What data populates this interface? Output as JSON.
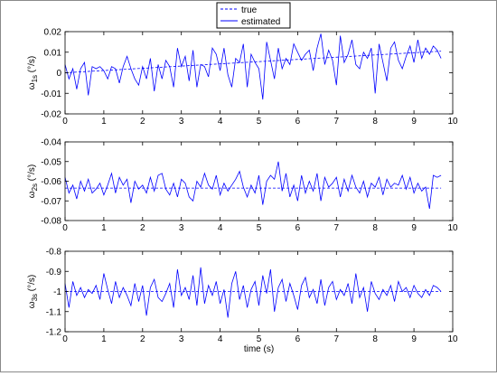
{
  "legend": {
    "entries": [
      {
        "label": "true",
        "style": "dashed",
        "color": "#0000ff"
      },
      {
        "label": "estimated",
        "style": "solid",
        "color": "#0000ff"
      }
    ]
  },
  "chart_data": [
    {
      "type": "line",
      "ylabel_main": "ω",
      "ylabel_sub": "1s",
      "ylabel_unit": " (°/s)",
      "xlabel": "",
      "xlim": [
        0,
        10
      ],
      "ylim": [
        -0.02,
        0.02
      ],
      "xticks": [
        0,
        1,
        2,
        3,
        4,
        5,
        6,
        7,
        8,
        9,
        10
      ],
      "yticks": [
        -0.02,
        -0.01,
        0,
        0.01,
        0.02
      ],
      "ytick_labels": [
        "-0.02",
        "-0.01",
        "0",
        "0.01",
        "0.02"
      ],
      "series": [
        {
          "name": "true",
          "style": "dashed",
          "color": "#0000ff",
          "x": [
            0,
            9.7
          ],
          "y": [
            0.0,
            0.0105
          ]
        },
        {
          "name": "estimated",
          "style": "solid",
          "color": "#0000ff",
          "x": [
            0,
            0.1,
            0.2,
            0.3,
            0.4,
            0.5,
            0.6,
            0.7,
            0.8,
            0.9,
            1,
            1.1,
            1.2,
            1.3,
            1.4,
            1.5,
            1.6,
            1.7,
            1.8,
            1.9,
            2,
            2.1,
            2.2,
            2.3,
            2.4,
            2.5,
            2.6,
            2.7,
            2.8,
            2.9,
            3,
            3.1,
            3.2,
            3.3,
            3.4,
            3.5,
            3.6,
            3.7,
            3.8,
            3.9,
            4,
            4.1,
            4.2,
            4.3,
            4.4,
            4.5,
            4.6,
            4.7,
            4.8,
            4.9,
            5,
            5.1,
            5.2,
            5.3,
            5.4,
            5.5,
            5.6,
            5.7,
            5.8,
            5.9,
            6,
            6.1,
            6.2,
            6.3,
            6.4,
            6.5,
            6.6,
            6.7,
            6.8,
            6.9,
            7,
            7.1,
            7.2,
            7.3,
            7.4,
            7.5,
            7.6,
            7.7,
            7.8,
            7.9,
            8,
            8.1,
            8.2,
            8.3,
            8.4,
            8.5,
            8.6,
            8.7,
            8.8,
            8.9,
            9,
            9.1,
            9.2,
            9.3,
            9.4,
            9.5,
            9.6,
            9.7
          ],
          "y": [
            0.004,
            -0.003,
            0.002,
            -0.008,
            0.002,
            0.005,
            -0.011,
            0.003,
            0.002,
            0.003,
            0.001,
            -0.003,
            0.003,
            0.002,
            -0.005,
            0.003,
            0.008,
            0.002,
            -0.003,
            -0.006,
            0.003,
            -0.003,
            0.007,
            -0.009,
            0.004,
            -0.003,
            0.006,
            0.003,
            -0.007,
            0.012,
            0.003,
            0.008,
            -0.004,
            0.011,
            -0.007,
            0.004,
            0.003,
            -0.002,
            0.012,
            0.009,
            0.001,
            0.012,
            -0.001,
            -0.007,
            0.007,
            0.005,
            0.014,
            -0.007,
            0.009,
            0.005,
            0.002,
            -0.013,
            0.015,
            0.006,
            -0.003,
            0.012,
            0.002,
            0.007,
            0.004,
            0.014,
            0.01,
            0.006,
            0.009,
            0.011,
            0.001,
            0.012,
            0.019,
            0.004,
            0.011,
            0.006,
            -0.006,
            0.018,
            0.005,
            0.009,
            0.016,
            0.004,
            0.002,
            0.01,
            0.007,
            0.012,
            -0.01,
            0.014,
            0.005,
            -0.004,
            0.012,
            0.015,
            0.006,
            0.002,
            0.008,
            0.013,
            0.005,
            0.016,
            0.007,
            0.012,
            0.009,
            0.013,
            0.011,
            0.007
          ]
        }
      ]
    },
    {
      "type": "line",
      "ylabel_main": "ω",
      "ylabel_sub": "2s",
      "ylabel_unit": " (°/s)",
      "xlabel": "",
      "xlim": [
        0,
        10
      ],
      "ylim": [
        -0.08,
        -0.04
      ],
      "xticks": [
        0,
        1,
        2,
        3,
        4,
        5,
        6,
        7,
        8,
        9,
        10
      ],
      "yticks": [
        -0.08,
        -0.07,
        -0.06,
        -0.05,
        -0.04
      ],
      "ytick_labels": [
        "-0.08",
        "-0.07",
        "-0.06",
        "-0.05",
        "-0.04"
      ],
      "series": [
        {
          "name": "true",
          "style": "dashed",
          "color": "#0000ff",
          "x": [
            0,
            9.7
          ],
          "y": [
            -0.0635,
            -0.0635
          ]
        },
        {
          "name": "estimated",
          "style": "solid",
          "color": "#0000ff",
          "x": [
            0,
            0.1,
            0.2,
            0.3,
            0.4,
            0.5,
            0.6,
            0.7,
            0.8,
            0.9,
            1,
            1.1,
            1.2,
            1.3,
            1.4,
            1.5,
            1.6,
            1.7,
            1.8,
            1.9,
            2,
            2.1,
            2.2,
            2.3,
            2.4,
            2.5,
            2.6,
            2.7,
            2.8,
            2.9,
            3,
            3.1,
            3.2,
            3.3,
            3.4,
            3.5,
            3.6,
            3.7,
            3.8,
            3.9,
            4,
            4.1,
            4.2,
            4.3,
            4.4,
            4.5,
            4.6,
            4.7,
            4.8,
            4.9,
            5,
            5.1,
            5.2,
            5.3,
            5.4,
            5.5,
            5.6,
            5.7,
            5.8,
            5.9,
            6,
            6.1,
            6.2,
            6.3,
            6.4,
            6.5,
            6.6,
            6.7,
            6.8,
            6.9,
            7,
            7.1,
            7.2,
            7.3,
            7.4,
            7.5,
            7.6,
            7.7,
            7.8,
            7.9,
            8,
            8.1,
            8.2,
            8.3,
            8.4,
            8.5,
            8.6,
            8.7,
            8.8,
            8.9,
            9,
            9.1,
            9.2,
            9.3,
            9.4,
            9.5,
            9.6,
            9.7
          ],
          "y": [
            -0.058,
            -0.066,
            -0.062,
            -0.069,
            -0.06,
            -0.065,
            -0.059,
            -0.066,
            -0.064,
            -0.061,
            -0.067,
            -0.062,
            -0.056,
            -0.066,
            -0.058,
            -0.062,
            -0.059,
            -0.071,
            -0.06,
            -0.064,
            -0.062,
            -0.066,
            -0.058,
            -0.065,
            -0.057,
            -0.056,
            -0.064,
            -0.067,
            -0.061,
            -0.068,
            -0.059,
            -0.061,
            -0.068,
            -0.07,
            -0.06,
            -0.063,
            -0.056,
            -0.062,
            -0.064,
            -0.057,
            -0.067,
            -0.061,
            -0.065,
            -0.062,
            -0.059,
            -0.055,
            -0.063,
            -0.068,
            -0.062,
            -0.066,
            -0.057,
            -0.072,
            -0.06,
            -0.057,
            -0.059,
            -0.05,
            -0.065,
            -0.056,
            -0.068,
            -0.062,
            -0.07,
            -0.057,
            -0.066,
            -0.06,
            -0.065,
            -0.056,
            -0.07,
            -0.058,
            -0.063,
            -0.061,
            -0.058,
            -0.068,
            -0.059,
            -0.065,
            -0.057,
            -0.063,
            -0.066,
            -0.06,
            -0.068,
            -0.061,
            -0.063,
            -0.058,
            -0.067,
            -0.059,
            -0.063,
            -0.061,
            -0.062,
            -0.057,
            -0.064,
            -0.058,
            -0.066,
            -0.061,
            -0.065,
            -0.063,
            -0.074,
            -0.057,
            -0.058,
            -0.057
          ]
        }
      ]
    },
    {
      "type": "line",
      "ylabel_main": "ω",
      "ylabel_sub": "3s",
      "ylabel_unit": " (°/s)",
      "xlabel": "time (s)",
      "xlim": [
        0,
        10
      ],
      "ylim": [
        -1.2,
        -0.8
      ],
      "xticks": [
        0,
        1,
        2,
        3,
        4,
        5,
        6,
        7,
        8,
        9,
        10
      ],
      "yticks": [
        -1.2,
        -1.1,
        -1.0,
        -0.9,
        -0.8
      ],
      "ytick_labels": [
        "-1.2",
        "-1.1",
        "-1",
        "-0.9",
        "-0.8"
      ],
      "series": [
        {
          "name": "true",
          "style": "dashed",
          "color": "#0000ff",
          "x": [
            0,
            9.7
          ],
          "y": [
            -1.0,
            -1.0
          ]
        },
        {
          "name": "estimated",
          "style": "solid",
          "color": "#0000ff",
          "x": [
            0,
            0.1,
            0.2,
            0.3,
            0.4,
            0.5,
            0.6,
            0.7,
            0.8,
            0.9,
            1,
            1.1,
            1.2,
            1.3,
            1.4,
            1.5,
            1.6,
            1.7,
            1.8,
            1.9,
            2,
            2.1,
            2.2,
            2.3,
            2.4,
            2.5,
            2.6,
            2.7,
            2.8,
            2.9,
            3,
            3.1,
            3.2,
            3.3,
            3.4,
            3.5,
            3.6,
            3.7,
            3.8,
            3.9,
            4,
            4.1,
            4.2,
            4.3,
            4.4,
            4.5,
            4.6,
            4.7,
            4.8,
            4.9,
            5,
            5.1,
            5.2,
            5.3,
            5.4,
            5.5,
            5.6,
            5.7,
            5.8,
            5.9,
            6,
            6.1,
            6.2,
            6.3,
            6.4,
            6.5,
            6.6,
            6.7,
            6.8,
            6.9,
            7,
            7.1,
            7.2,
            7.3,
            7.4,
            7.5,
            7.6,
            7.7,
            7.8,
            7.9,
            8,
            8.1,
            8.2,
            8.3,
            8.4,
            8.5,
            8.6,
            8.7,
            8.8,
            8.9,
            9,
            9.1,
            9.2,
            9.3,
            9.4,
            9.5,
            9.6,
            9.7
          ],
          "y": [
            -0.96,
            -1.08,
            -0.95,
            -1.02,
            -0.98,
            -1.03,
            -0.99,
            -1.01,
            -0.97,
            -1.04,
            -0.91,
            -0.99,
            -1.06,
            -0.95,
            -1.03,
            -0.98,
            -1.02,
            -1.07,
            -0.96,
            -1.05,
            -0.97,
            -1.12,
            -0.98,
            -0.94,
            -1.03,
            -1.05,
            -1.01,
            -0.96,
            -1.08,
            -0.89,
            -1.02,
            -0.98,
            -1.04,
            -0.92,
            -1.07,
            -0.88,
            -1.06,
            -0.97,
            -1.02,
            -0.95,
            -1.06,
            -0.99,
            -1.13,
            -0.96,
            -0.9,
            -1.04,
            -0.97,
            -1.08,
            -0.99,
            -0.95,
            -1.07,
            -0.92,
            -1.01,
            -0.89,
            -1.1,
            -0.98,
            -0.94,
            -1.05,
            -0.96,
            -1.02,
            -1.09,
            -0.97,
            -0.93,
            -1.03,
            -0.99,
            -1.06,
            -0.94,
            -1.07,
            -0.98,
            -0.95,
            -1.04,
            -0.99,
            -1.02,
            -0.96,
            -1.06,
            -0.91,
            -1.03,
            -0.98,
            -1.1,
            -0.95,
            -1.01,
            -1.04,
            -0.99,
            -1.02,
            -0.97,
            -1.05,
            -0.95,
            -1.0,
            -0.98,
            -1.03,
            -0.97,
            -1.01,
            -1.03,
            -0.99,
            -1.02,
            -0.97,
            -0.98,
            -1.0
          ]
        }
      ]
    }
  ]
}
